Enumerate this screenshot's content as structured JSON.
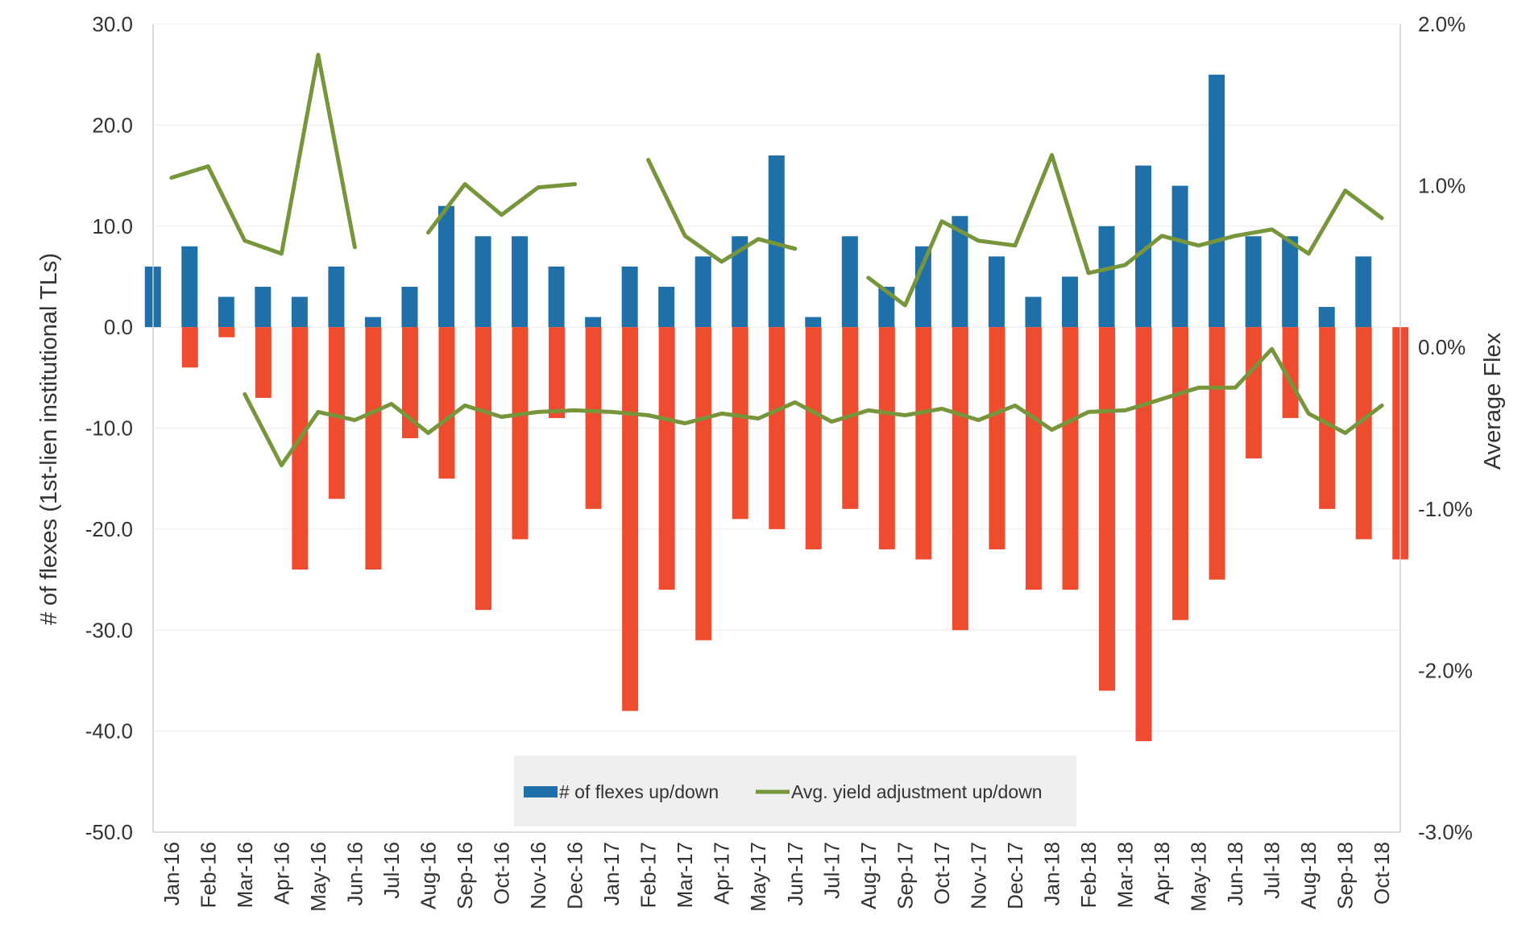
{
  "chart_data": {
    "type": "bar",
    "categories": [
      "Jan-16",
      "Feb-16",
      "Mar-16",
      "Apr-16",
      "May-16",
      "Jun-16",
      "Jul-16",
      "Aug-16",
      "Sep-16",
      "Oct-16",
      "Nov-16",
      "Dec-16",
      "Jan-17",
      "Feb-17",
      "Mar-17",
      "Apr-17",
      "May-17",
      "Jun-17",
      "Jul-17",
      "Aug-17",
      "Sep-17",
      "Oct-17",
      "Nov-17",
      "Dec-17",
      "Jan-18",
      "Feb-18",
      "Mar-18",
      "Apr-18",
      "May-18",
      "Jun-18",
      "Jul-18",
      "Aug-18",
      "Sep-18",
      "Oct-18"
    ],
    "series": [
      {
        "name": "# of flexes up/down",
        "kind": "bar",
        "axis": "left",
        "color": "#1f6fa8",
        "values": [
          6,
          8,
          3,
          4,
          3,
          6,
          1,
          4,
          12,
          9,
          9,
          6,
          1,
          6,
          4,
          7,
          9,
          17,
          1,
          9,
          4,
          8,
          11,
          7,
          3,
          5,
          10,
          16,
          14,
          25,
          9,
          9,
          2,
          7
        ]
      },
      {
        "kind": "bar",
        "axis": "left",
        "color": "#ee4b2f",
        "values": [
          -4,
          -1,
          -7,
          -24,
          -17,
          -24,
          -11,
          -15,
          -28,
          -21,
          -9,
          -18,
          -38,
          -26,
          -31,
          -19,
          -20,
          -22,
          -18,
          -22,
          -23,
          -30,
          -22,
          -26,
          -26,
          -36,
          -41,
          -29,
          -25,
          -13,
          -9,
          -18,
          -21,
          -23
        ]
      },
      {
        "name": "Avg. yield adjustment up/down",
        "kind": "line",
        "axis": "right",
        "color": "#77963b",
        "values": [
          1.05,
          1.12,
          0.66,
          0.58,
          1.81,
          0.62,
          null,
          0.71,
          1.01,
          0.82,
          0.99,
          1.01,
          null,
          1.16,
          0.69,
          0.53,
          0.67,
          0.61,
          null,
          0.43,
          0.26,
          0.78,
          0.66,
          0.63,
          1.19,
          0.46,
          0.51,
          0.69,
          0.63,
          0.69,
          0.73,
          0.58,
          0.97,
          0.8
        ]
      },
      {
        "kind": "line",
        "axis": "right",
        "color": "#77963b",
        "values": [
          null,
          null,
          -0.29,
          -0.73,
          -0.4,
          -0.45,
          -0.35,
          -0.53,
          -0.36,
          -0.43,
          -0.4,
          -0.39,
          -0.4,
          -0.42,
          -0.47,
          -0.41,
          -0.44,
          -0.34,
          -0.46,
          -0.39,
          -0.42,
          -0.38,
          -0.45,
          -0.36,
          -0.51,
          -0.4,
          -0.39,
          -0.32,
          -0.25,
          -0.25,
          -0.01,
          -0.41,
          -0.53,
          -0.36
        ]
      }
    ],
    "y_left": {
      "label": "#  of flexes (1st-lien institutional TLs)",
      "min": -50,
      "max": 30,
      "step": 10,
      "tick_labels": [
        "-50.0",
        "-40.0",
        "-30.0",
        "-20.0",
        "-10.0",
        "0.0",
        "10.0",
        "20.0",
        "30.0"
      ]
    },
    "y_right": {
      "label": "Average Flex",
      "min": -3.0,
      "max": 2.0,
      "step": 1.0,
      "tick_labels": [
        "-3.0%",
        "-2.0%",
        "-1.0%",
        "0.0%",
        "1.0%",
        "2.0%"
      ]
    },
    "grid": true,
    "legend_position": "bottom-center",
    "legend": [
      {
        "label": "# of flexes up/down",
        "symbol": "bar",
        "color": "#1f6fa8"
      },
      {
        "label": "Avg. yield adjustment up/down",
        "symbol": "line",
        "color": "#77963b"
      }
    ]
  }
}
